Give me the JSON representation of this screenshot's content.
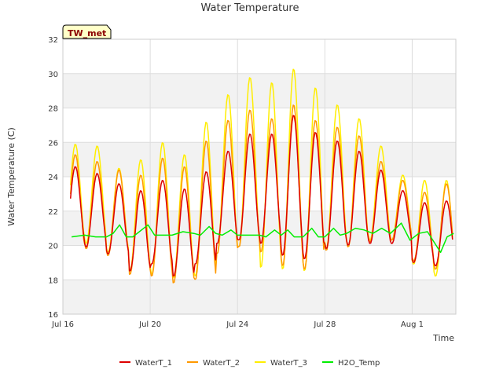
{
  "chart_data": {
    "type": "line",
    "title": "Water Temperature",
    "xlabel": "Time",
    "ylabel": "Water Temperature (C)",
    "site_label": "TW_met",
    "ylim": [
      16,
      32
    ],
    "yticks": [
      16,
      18,
      20,
      22,
      24,
      26,
      28,
      30,
      32
    ],
    "xlim_days": [
      0,
      18
    ],
    "xticks": [
      {
        "label": "Jul 16",
        "day": 0
      },
      {
        "label": "Jul 20",
        "day": 4
      },
      {
        "label": "Jul 24",
        "day": 8
      },
      {
        "label": "Jul 28",
        "day": 12
      },
      {
        "label": "Aug 1",
        "day": 16
      }
    ],
    "grid": true,
    "legend_position": "bottom",
    "series": [
      {
        "name": "WaterT_1",
        "color": "#dd0000",
        "daily_min": [
          20.0,
          19.9,
          19.5,
          18.5,
          18.9,
          18.2,
          18.9,
          20.1,
          20.3,
          20.1,
          19.4,
          19.2,
          19.8,
          20.0,
          20.1,
          20.1,
          19.0,
          18.8
        ],
        "daily_max": [
          24.6,
          24.2,
          23.6,
          23.2,
          23.8,
          23.3,
          24.3,
          25.5,
          26.5,
          26.5,
          27.6,
          26.6,
          26.1,
          25.5,
          24.4,
          23.2,
          22.5,
          22.6
        ]
      },
      {
        "name": "WaterT_2",
        "color": "#ff9900",
        "daily_min": [
          19.6,
          19.8,
          19.4,
          18.3,
          18.2,
          17.8,
          18.0,
          19.5,
          19.9,
          19.6,
          18.8,
          18.6,
          19.7,
          19.9,
          20.2,
          20.3,
          19.1,
          18.6
        ],
        "daily_max": [
          25.3,
          24.9,
          24.4,
          24.1,
          25.1,
          24.6,
          26.1,
          27.3,
          27.9,
          27.4,
          28.2,
          27.3,
          26.9,
          26.4,
          24.9,
          23.8,
          23.1,
          23.6
        ]
      },
      {
        "name": "WaterT_3",
        "color": "#ffee00",
        "daily_min": [
          20.0,
          20.1,
          19.6,
          18.5,
          18.3,
          18.1,
          18.2,
          19.5,
          19.9,
          18.7,
          18.6,
          18.5,
          19.8,
          19.9,
          20.3,
          20.3,
          18.9,
          18.2
        ],
        "daily_max": [
          25.9,
          25.8,
          24.5,
          25.0,
          26.0,
          25.3,
          27.2,
          28.8,
          29.8,
          29.5,
          30.3,
          29.2,
          28.2,
          27.4,
          25.8,
          24.1,
          23.8,
          23.8
        ]
      },
      {
        "name": "H2O_Temp",
        "color": "#00ee00",
        "points": [
          [
            0.4,
            20.5
          ],
          [
            1.0,
            20.6
          ],
          [
            1.5,
            20.5
          ],
          [
            2.0,
            20.5
          ],
          [
            2.3,
            20.7
          ],
          [
            2.6,
            21.2
          ],
          [
            2.9,
            20.5
          ],
          [
            3.2,
            20.5
          ],
          [
            3.9,
            21.2
          ],
          [
            4.2,
            20.6
          ],
          [
            5.0,
            20.6
          ],
          [
            5.5,
            20.8
          ],
          [
            6.0,
            20.7
          ],
          [
            6.3,
            20.6
          ],
          [
            6.7,
            21.1
          ],
          [
            7.0,
            20.7
          ],
          [
            7.3,
            20.6
          ],
          [
            7.7,
            20.9
          ],
          [
            8.0,
            20.6
          ],
          [
            8.5,
            20.6
          ],
          [
            9.0,
            20.6
          ],
          [
            9.3,
            20.5
          ],
          [
            9.7,
            20.9
          ],
          [
            10.0,
            20.6
          ],
          [
            10.3,
            20.9
          ],
          [
            10.6,
            20.5
          ],
          [
            11.0,
            20.5
          ],
          [
            11.4,
            21.0
          ],
          [
            11.7,
            20.5
          ],
          [
            12.0,
            20.5
          ],
          [
            12.4,
            21.0
          ],
          [
            12.7,
            20.6
          ],
          [
            13.0,
            20.7
          ],
          [
            13.4,
            21.0
          ],
          [
            13.8,
            20.9
          ],
          [
            14.2,
            20.7
          ],
          [
            14.6,
            21.0
          ],
          [
            15.0,
            20.7
          ],
          [
            15.5,
            21.3
          ],
          [
            15.9,
            20.3
          ],
          [
            16.3,
            20.7
          ],
          [
            16.7,
            20.8
          ],
          [
            17.0,
            20.2
          ],
          [
            17.3,
            19.6
          ],
          [
            17.6,
            20.5
          ],
          [
            17.9,
            20.7
          ]
        ]
      }
    ]
  }
}
